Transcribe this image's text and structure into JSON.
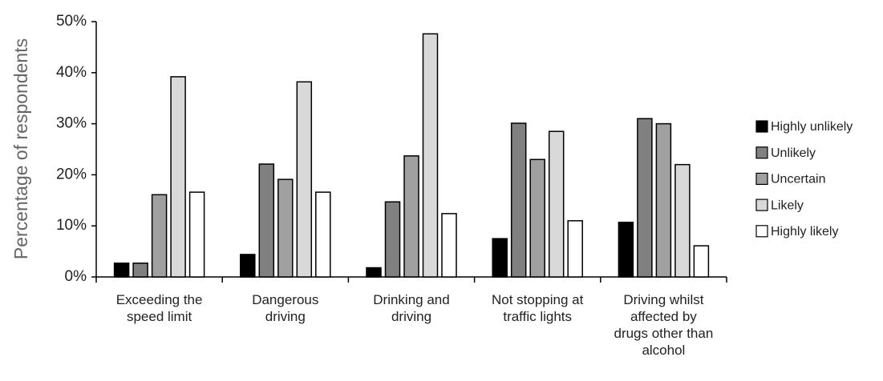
{
  "chart_data": {
    "type": "bar",
    "y_label": "Percentage of respondents",
    "categories": [
      "Exceeding the speed limit",
      "Dangerous driving",
      "Drinking and driving",
      "Not stopping at traffic lights",
      "Driving whilst affected by drugs other than alcohol"
    ],
    "series": [
      {
        "name": "Highly unlikely",
        "color": "#000000",
        "values": [
          2.7,
          4.4,
          1.8,
          7.5,
          10.7
        ]
      },
      {
        "name": "Unlikely",
        "color": "#808080",
        "values": [
          2.7,
          22.1,
          14.7,
          30.1,
          31
        ]
      },
      {
        "name": "Uncertain",
        "color": "#a0a0a0",
        "values": [
          16.1,
          19.1,
          23.7,
          23,
          30
        ]
      },
      {
        "name": "Likely",
        "color": "#d9d9d9",
        "values": [
          39.2,
          38.2,
          47.6,
          28.5,
          22
        ]
      },
      {
        "name": "Highly likely",
        "color": "#ffffff",
        "values": [
          16.6,
          16.6,
          12.4,
          11,
          6.1
        ]
      }
    ],
    "ylim": [
      0,
      50
    ],
    "yticks": [
      {
        "value": 0,
        "label": "0%"
      },
      {
        "value": 10,
        "label": "10%"
      },
      {
        "value": 20,
        "label": "20%"
      },
      {
        "value": 30,
        "label": "30%"
      },
      {
        "value": 40,
        "label": "40%"
      },
      {
        "value": 50,
        "label": "50%"
      }
    ],
    "legend": "right"
  }
}
